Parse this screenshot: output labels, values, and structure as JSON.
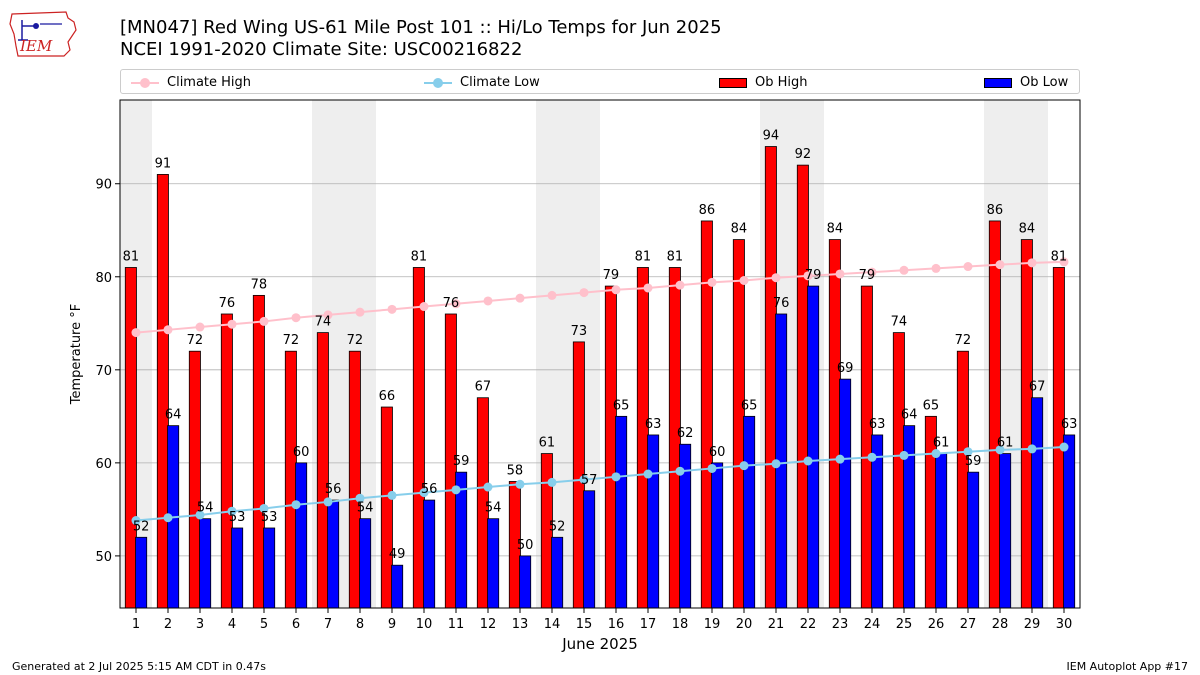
{
  "header": {
    "title_line1": "[MN047] Red Wing US-61 Mile Post 101 :: Hi/Lo Temps for Jun 2025",
    "title_line2": "NCEI 1991-2020 Climate Site: USC00216822",
    "logo_text": "IEM"
  },
  "legend": {
    "climate_high": "Climate High",
    "climate_low": "Climate Low",
    "ob_high": "Ob High",
    "ob_low": "Ob Low"
  },
  "colors": {
    "ob_high": "#ff0000",
    "ob_low": "#0000ff",
    "climate_high": "#ffc0cb",
    "climate_low": "#87ceeb",
    "weekend_band": "#eeeeee",
    "grid": "#b0b0b0",
    "logo": "#cc2222"
  },
  "chart_data": {
    "type": "bar",
    "title": "[MN047] Red Wing US-61 Mile Post 101 :: Hi/Lo Temps for Jun 2025",
    "xlabel": "June 2025",
    "ylabel": "Temperature °F",
    "ylim": [
      44.4,
      99
    ],
    "yticks": [
      50,
      60,
      70,
      80,
      90
    ],
    "grid": true,
    "legend_position": "top",
    "categories": [
      "1",
      "2",
      "3",
      "4",
      "5",
      "6",
      "7",
      "8",
      "9",
      "10",
      "11",
      "12",
      "13",
      "14",
      "15",
      "16",
      "17",
      "18",
      "19",
      "20",
      "21",
      "22",
      "23",
      "24",
      "25",
      "26",
      "27",
      "28",
      "29",
      "30"
    ],
    "weekend_days": [
      1,
      7,
      8,
      14,
      15,
      21,
      22,
      28,
      29
    ],
    "series": [
      {
        "name": "Ob High",
        "type": "bar",
        "values": [
          81,
          91,
          72,
          76,
          78,
          72,
          74,
          72,
          66,
          81,
          76,
          67,
          58,
          61,
          73,
          79,
          81,
          81,
          86,
          84,
          94,
          92,
          84,
          79,
          74,
          65,
          72,
          86,
          84,
          81
        ]
      },
      {
        "name": "Ob Low",
        "type": "bar",
        "values": [
          52,
          64,
          54,
          53,
          53,
          60,
          56,
          54,
          49,
          56,
          59,
          54,
          50,
          52,
          57,
          65,
          63,
          62,
          60,
          65,
          76,
          79,
          69,
          63,
          64,
          61,
          59,
          61,
          67,
          63
        ]
      },
      {
        "name": "Climate High",
        "type": "line",
        "values": [
          74.0,
          74.3,
          74.6,
          74.9,
          75.2,
          75.6,
          75.9,
          76.2,
          76.5,
          76.8,
          77.1,
          77.4,
          77.7,
          78.0,
          78.3,
          78.6,
          78.8,
          79.1,
          79.4,
          79.6,
          79.9,
          80.1,
          80.3,
          80.5,
          80.7,
          80.9,
          81.1,
          81.3,
          81.5,
          81.6
        ]
      },
      {
        "name": "Climate Low",
        "type": "line",
        "values": [
          53.8,
          54.1,
          54.4,
          54.8,
          55.1,
          55.5,
          55.8,
          56.2,
          56.5,
          56.8,
          57.1,
          57.4,
          57.7,
          57.9,
          58.2,
          58.5,
          58.8,
          59.1,
          59.4,
          59.7,
          59.9,
          60.2,
          60.4,
          60.6,
          60.8,
          61.0,
          61.2,
          61.4,
          61.5,
          61.7
        ]
      }
    ]
  },
  "footer": {
    "generated": "Generated at 2 Jul 2025 5:15 AM CDT in 0.47s",
    "app": "IEM Autoplot App #17"
  }
}
